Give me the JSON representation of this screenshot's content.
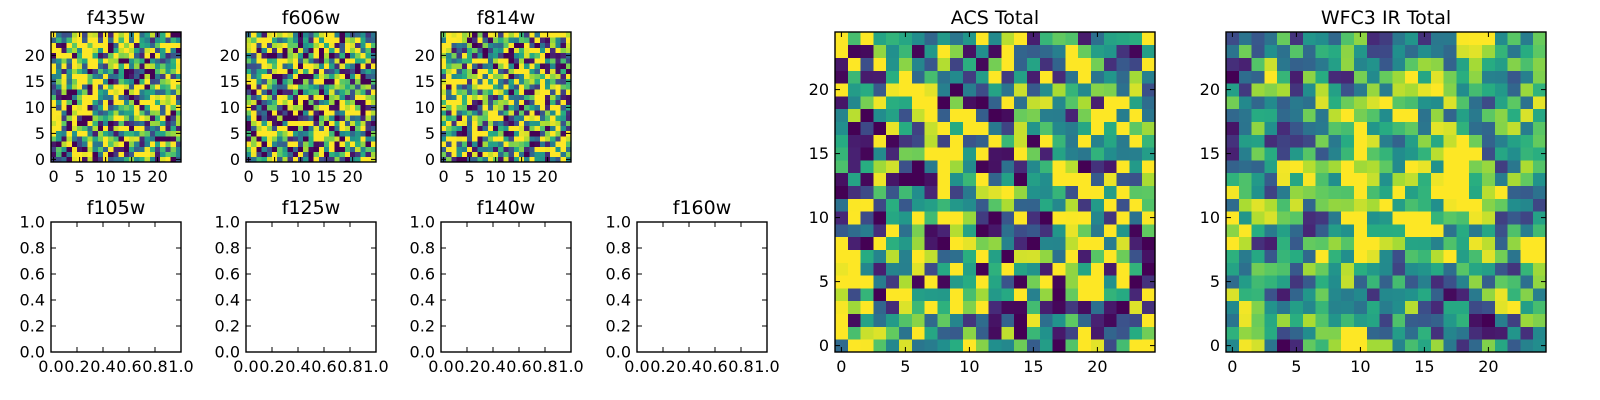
{
  "figure": {
    "background": "#ffffff"
  },
  "chart_data": [
    {
      "type": "heatmap",
      "title": "f435w",
      "xlim": [
        -0.5,
        24.5
      ],
      "ylim": [
        -0.5,
        24.5
      ],
      "xticks": [
        0,
        5,
        10,
        15,
        20
      ],
      "yticks": [
        0,
        5,
        10,
        15,
        20
      ],
      "size": [
        25,
        25
      ],
      "colormap": "viridis",
      "seed": 11,
      "smooth": 0.15,
      "bias": 0.62,
      "grid": false
    },
    {
      "type": "heatmap",
      "title": "f606w",
      "xlim": [
        -0.5,
        24.5
      ],
      "ylim": [
        -0.5,
        24.5
      ],
      "xticks": [
        0,
        5,
        10,
        15,
        20
      ],
      "yticks": [
        0,
        5,
        10,
        15,
        20
      ],
      "size": [
        25,
        25
      ],
      "colormap": "viridis",
      "seed": 23,
      "smooth": 0.15,
      "bias": 0.6,
      "grid": false
    },
    {
      "type": "heatmap",
      "title": "f814w",
      "xlim": [
        -0.5,
        24.5
      ],
      "ylim": [
        -0.5,
        24.5
      ],
      "xticks": [
        0,
        5,
        10,
        15,
        20
      ],
      "yticks": [
        0,
        5,
        10,
        15,
        20
      ],
      "size": [
        25,
        25
      ],
      "colormap": "viridis",
      "seed": 37,
      "smooth": 0.2,
      "bias": 0.64,
      "grid": false
    },
    {
      "type": "heatmap",
      "title": "f105w",
      "empty": true,
      "xlim": [
        0,
        1
      ],
      "ylim": [
        0,
        1
      ],
      "xticks": [
        0.0,
        0.2,
        0.4,
        0.6,
        0.8,
        1.0
      ],
      "yticks": [
        0.0,
        0.2,
        0.4,
        0.6,
        0.8,
        1.0
      ],
      "grid": false
    },
    {
      "type": "heatmap",
      "title": "f125w",
      "empty": true,
      "xlim": [
        0,
        1
      ],
      "ylim": [
        0,
        1
      ],
      "xticks": [
        0.0,
        0.2,
        0.4,
        0.6,
        0.8,
        1.0
      ],
      "yticks": [
        0.0,
        0.2,
        0.4,
        0.6,
        0.8,
        1.0
      ],
      "grid": false
    },
    {
      "type": "heatmap",
      "title": "f140w",
      "empty": true,
      "xlim": [
        0,
        1
      ],
      "ylim": [
        0,
        1
      ],
      "xticks": [
        0.0,
        0.2,
        0.4,
        0.6,
        0.8,
        1.0
      ],
      "yticks": [
        0.0,
        0.2,
        0.4,
        0.6,
        0.8,
        1.0
      ],
      "grid": false
    },
    {
      "type": "heatmap",
      "title": "f160w",
      "empty": true,
      "xlim": [
        0,
        1
      ],
      "ylim": [
        0,
        1
      ],
      "xticks": [
        0.0,
        0.2,
        0.4,
        0.6,
        0.8,
        1.0
      ],
      "yticks": [
        0.0,
        0.2,
        0.4,
        0.6,
        0.8,
        1.0
      ],
      "grid": false
    },
    {
      "type": "heatmap",
      "title": "ACS Total",
      "xlim": [
        -0.5,
        24.5
      ],
      "ylim": [
        -0.5,
        24.5
      ],
      "xticks": [
        0,
        5,
        10,
        15,
        20
      ],
      "yticks": [
        0,
        5,
        10,
        15,
        20
      ],
      "size": [
        25,
        25
      ],
      "colormap": "viridis",
      "seed": 51,
      "smooth": 0.25,
      "bias": 0.6,
      "grid": false
    },
    {
      "type": "heatmap",
      "title": "WFC3 IR Total",
      "xlim": [
        -0.5,
        24.5
      ],
      "ylim": [
        -0.5,
        24.5
      ],
      "xticks": [
        0,
        5,
        10,
        15,
        20
      ],
      "yticks": [
        0,
        5,
        10,
        15,
        20
      ],
      "size": [
        25,
        25
      ],
      "colormap": "viridis",
      "seed": 73,
      "smooth": 0.55,
      "bias": 0.55,
      "blob": [
        12.5,
        12,
        3.5
      ],
      "grid": false
    }
  ]
}
